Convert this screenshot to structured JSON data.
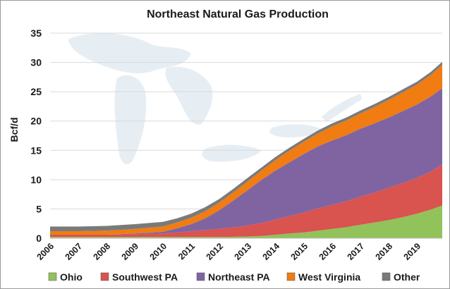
{
  "chart_data": {
    "type": "area",
    "stacked": true,
    "title": "Northeast Natural Gas Production",
    "xlabel": "",
    "ylabel": "Bcf/d",
    "ylim": [
      0,
      35
    ],
    "yticks": [
      0,
      5,
      10,
      15,
      20,
      25,
      30,
      35
    ],
    "xlim": [
      2006,
      2019.9
    ],
    "xticks": [
      "2006",
      "2007",
      "2008",
      "2009",
      "2010",
      "2011",
      "2012",
      "2013",
      "2014",
      "2015",
      "2016",
      "2017",
      "2018",
      "2019"
    ],
    "grid": "horizontal",
    "legend_position": "bottom",
    "x": [
      2006,
      2007,
      2008,
      2009,
      2010,
      2010.5,
      2011,
      2011.5,
      2012,
      2012.5,
      2013,
      2013.5,
      2014,
      2014.5,
      2015,
      2015.5,
      2016,
      2016.5,
      2017,
      2017.5,
      2018,
      2018.5,
      2019,
      2019.5,
      2019.9
    ],
    "series": [
      {
        "name": "Ohio",
        "color": "#92c25a",
        "values": [
          0.2,
          0.2,
          0.2,
          0.2,
          0.2,
          0.2,
          0.2,
          0.2,
          0.2,
          0.25,
          0.3,
          0.4,
          0.6,
          0.8,
          1.0,
          1.3,
          1.6,
          1.9,
          2.3,
          2.7,
          3.1,
          3.6,
          4.2,
          4.9,
          5.6
        ]
      },
      {
        "name": "Southwest PA",
        "color": "#d9534f",
        "values": [
          0.4,
          0.4,
          0.4,
          0.5,
          0.6,
          0.8,
          1.0,
          1.2,
          1.4,
          1.6,
          1.9,
          2.2,
          2.6,
          3.0,
          3.4,
          3.8,
          4.1,
          4.4,
          4.8,
          5.1,
          5.5,
          5.8,
          6.1,
          6.5,
          7.0
        ]
      },
      {
        "name": "Northeast PA",
        "color": "#8064a2",
        "values": [
          0.0,
          0.0,
          0.0,
          0.1,
          0.3,
          0.7,
          1.2,
          2.0,
          3.2,
          4.6,
          6.0,
          7.4,
          8.4,
          9.2,
          10.0,
          10.6,
          11.0,
          11.3,
          11.6,
          11.8,
          12.0,
          12.3,
          12.5,
          12.8,
          13.0
        ]
      },
      {
        "name": "West Virginia",
        "color": "#f07c12",
        "values": [
          0.6,
          0.6,
          0.7,
          0.8,
          0.9,
          1.0,
          1.1,
          1.2,
          1.3,
          1.4,
          1.5,
          1.6,
          1.8,
          2.0,
          2.1,
          2.2,
          2.4,
          2.5,
          2.6,
          2.8,
          3.0,
          3.2,
          3.4,
          3.7,
          4.0
        ]
      },
      {
        "name": "Other",
        "color": "#7a7a7a",
        "values": [
          0.8,
          0.8,
          0.8,
          0.8,
          0.8,
          0.7,
          0.7,
          0.7,
          0.6,
          0.6,
          0.6,
          0.5,
          0.5,
          0.5,
          0.5,
          0.5,
          0.5,
          0.5,
          0.5,
          0.5,
          0.5,
          0.5,
          0.5,
          0.5,
          0.5
        ]
      }
    ]
  }
}
